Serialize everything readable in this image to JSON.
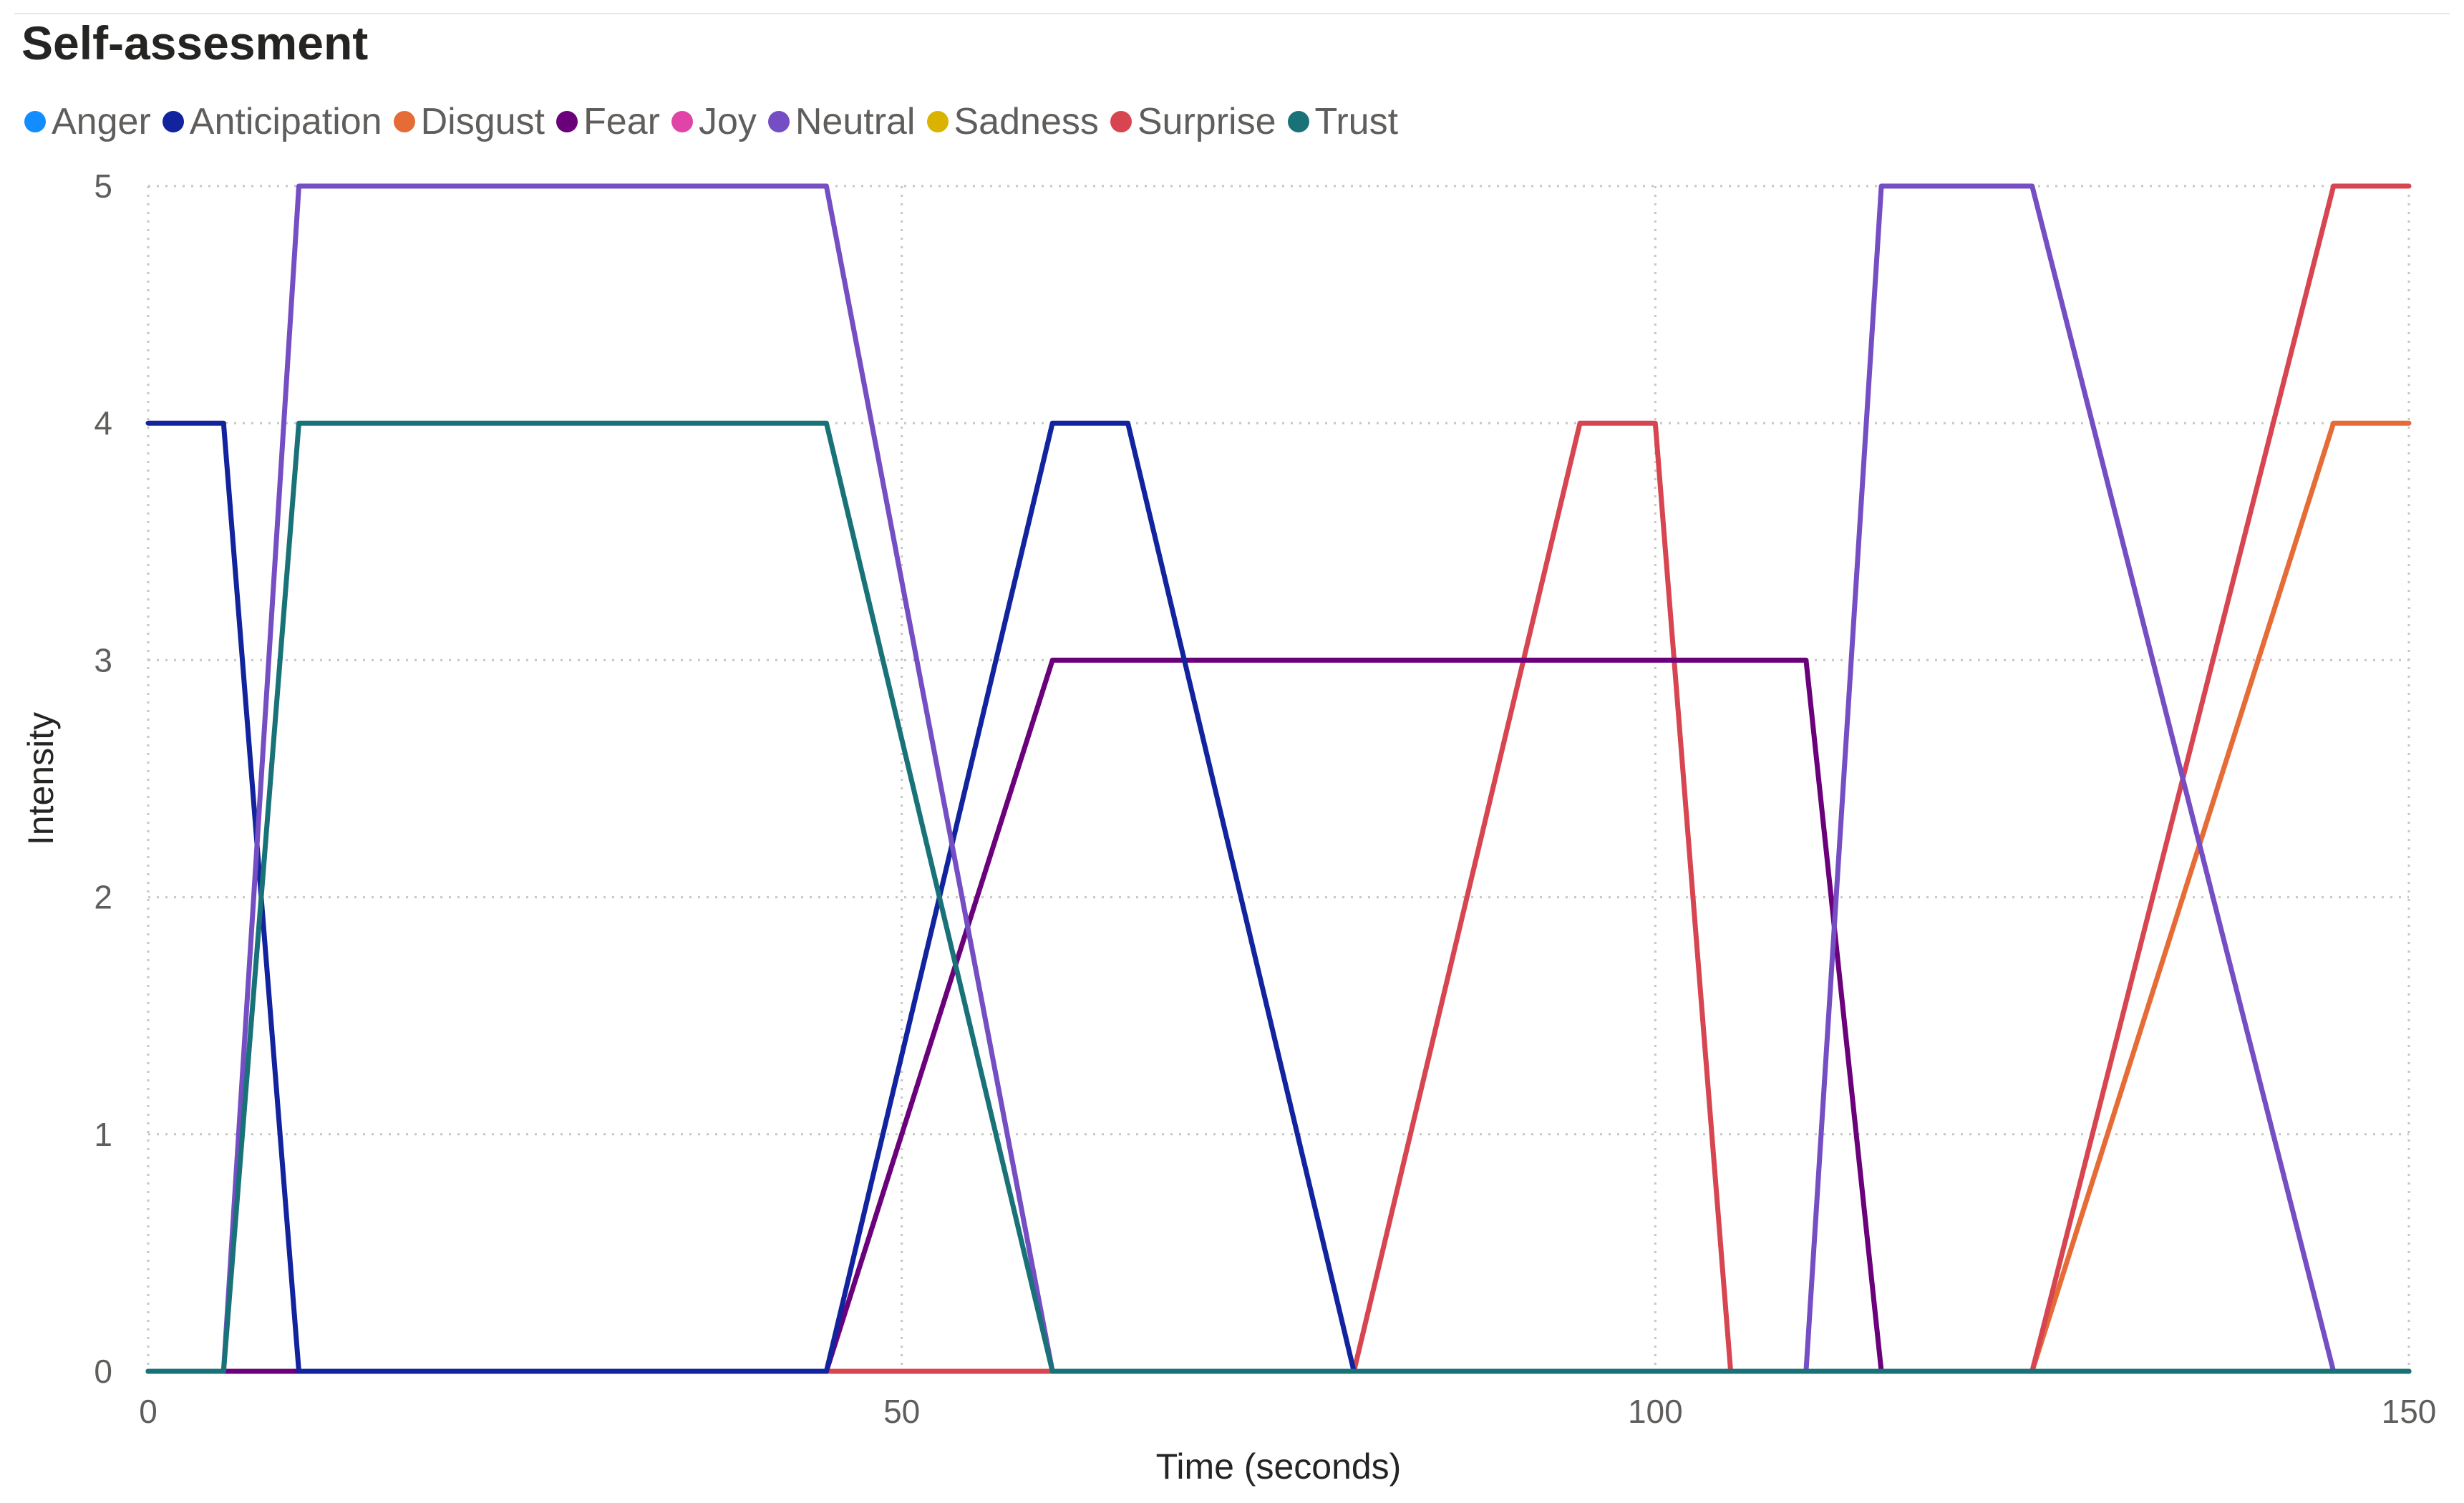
{
  "chart_data": {
    "type": "line",
    "title": "Self-assesment",
    "xlabel": "Time (seconds)",
    "ylabel": "Intensity",
    "xlim": [
      0,
      150
    ],
    "ylim": [
      0,
      5
    ],
    "x_ticks": [
      "0",
      "50",
      "100",
      "150"
    ],
    "y_ticks": [
      "0",
      "1",
      "2",
      "3",
      "4",
      "5"
    ],
    "grid": true,
    "legend_position": "top-left",
    "legend": [
      {
        "name": "Anger",
        "color": "#118dff"
      },
      {
        "name": "Anticipation",
        "color": "#12239e"
      },
      {
        "name": "Disgust",
        "color": "#e66c37"
      },
      {
        "name": "Fear",
        "color": "#6b007b"
      },
      {
        "name": "Joy",
        "color": "#e044a7"
      },
      {
        "name": "Neutral",
        "color": "#744ec2"
      },
      {
        "name": "Sadness",
        "color": "#d9b300"
      },
      {
        "name": "Surprise",
        "color": "#d64550"
      },
      {
        "name": "Trust",
        "color": "#197278"
      }
    ],
    "series": [
      {
        "name": "Disgust",
        "color": "#e66c37",
        "points": [
          [
            0,
            0
          ],
          [
            125,
            0
          ],
          [
            145,
            4
          ],
          [
            150,
            4
          ]
        ]
      },
      {
        "name": "Surprise",
        "color": "#d64550",
        "points": [
          [
            0,
            0
          ],
          [
            80,
            0
          ],
          [
            95,
            4
          ],
          [
            100,
            4
          ],
          [
            105,
            0
          ],
          [
            125,
            0
          ],
          [
            145,
            5
          ],
          [
            150,
            5
          ]
        ]
      },
      {
        "name": "Fear",
        "color": "#6b007b",
        "points": [
          [
            0,
            0
          ],
          [
            45,
            0
          ],
          [
            60,
            3
          ],
          [
            110,
            3
          ],
          [
            115,
            0
          ],
          [
            150,
            0
          ]
        ]
      },
      {
        "name": "Anticipation",
        "color": "#12239e",
        "points": [
          [
            0,
            4
          ],
          [
            5,
            4
          ],
          [
            10,
            0
          ],
          [
            45,
            0
          ],
          [
            60,
            4
          ],
          [
            65,
            4
          ],
          [
            80,
            0
          ],
          [
            150,
            0
          ]
        ]
      },
      {
        "name": "Neutral",
        "color": "#744ec2",
        "points": [
          [
            0,
            0
          ],
          [
            5,
            0
          ],
          [
            10,
            5
          ],
          [
            45,
            5
          ],
          [
            60,
            0
          ],
          [
            110,
            0
          ],
          [
            115,
            5
          ],
          [
            125,
            5
          ],
          [
            145,
            0
          ],
          [
            150,
            0
          ]
        ]
      },
      {
        "name": "Trust",
        "color": "#197278",
        "points": [
          [
            0,
            0
          ],
          [
            5,
            0
          ],
          [
            10,
            4
          ],
          [
            45,
            4
          ],
          [
            60,
            0
          ],
          [
            150,
            0
          ]
        ]
      }
    ]
  }
}
